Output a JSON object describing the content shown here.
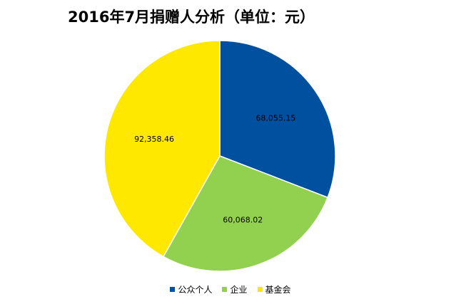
{
  "chart_data": {
    "type": "pie",
    "title": "2016年7月捐赠人分析（单位：元）",
    "slices": [
      {
        "label": "公众个人",
        "value": 68055.15,
        "value_label": "68,055.15",
        "color": "#0050A0"
      },
      {
        "label": "企业",
        "value": 60068.02,
        "value_label": "60,068.02",
        "color": "#92D050"
      },
      {
        "label": "基金会",
        "value": 92358.46,
        "value_label": "92,358.46",
        "color": "#FFE800"
      }
    ],
    "legend_position": "bottom",
    "start": "12 o'clock, clockwise"
  }
}
